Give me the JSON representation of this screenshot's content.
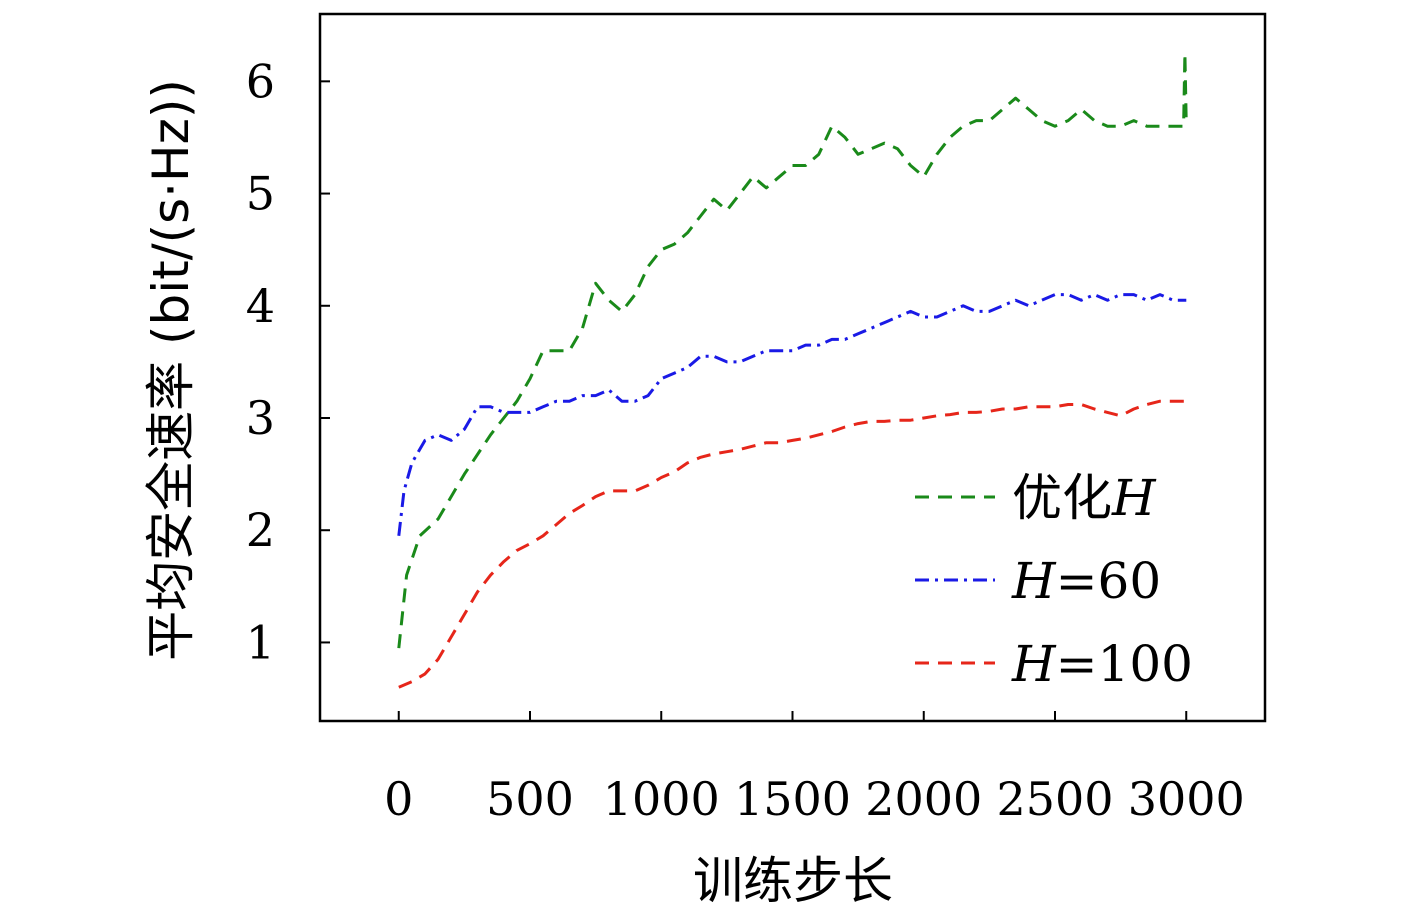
{
  "chart_data": {
    "type": "line",
    "title": "",
    "xlabel": "训练步长",
    "ylabel": "平均安全速率 (bit/(s·Hz))",
    "xlim": [
      -300,
      3300
    ],
    "ylim": [
      0.3,
      6.6
    ],
    "xticks": [
      0,
      500,
      1000,
      1500,
      2000,
      2500,
      3000
    ],
    "yticks": [
      1,
      2,
      3,
      4,
      5,
      6
    ],
    "grid": false,
    "legend_position": "right-middle",
    "series": [
      {
        "name": "优化H",
        "legend": {
          "prefix": "优化",
          "var": "H",
          "suffix": ""
        },
        "color": "#1a8a1a",
        "dash": "14 9",
        "x": [
          0,
          30,
          80,
          150,
          250,
          350,
          450,
          500,
          550,
          600,
          650,
          700,
          750,
          800,
          850,
          900,
          950,
          1000,
          1050,
          1100,
          1150,
          1200,
          1250,
          1300,
          1350,
          1400,
          1450,
          1500,
          1550,
          1600,
          1650,
          1700,
          1750,
          1800,
          1850,
          1900,
          1950,
          2000,
          2050,
          2100,
          2150,
          2200,
          2250,
          2300,
          2350,
          2400,
          2450,
          2500,
          2550,
          2600,
          2650,
          2700,
          2750,
          2800,
          2850,
          2900,
          2950,
          2990,
          2995,
          3000
        ],
        "values": [
          0.95,
          1.6,
          1.95,
          2.1,
          2.5,
          2.85,
          3.15,
          3.35,
          3.6,
          3.6,
          3.6,
          3.8,
          4.2,
          4.05,
          3.95,
          4.1,
          4.35,
          4.5,
          4.55,
          4.65,
          4.8,
          4.95,
          4.85,
          5.0,
          5.15,
          5.05,
          5.15,
          5.25,
          5.25,
          5.35,
          5.6,
          5.5,
          5.35,
          5.4,
          5.45,
          5.4,
          5.25,
          5.15,
          5.35,
          5.5,
          5.6,
          5.65,
          5.65,
          5.75,
          5.85,
          5.75,
          5.65,
          5.6,
          5.65,
          5.75,
          5.65,
          5.6,
          5.6,
          5.65,
          5.6,
          5.6,
          5.6,
          5.6,
          6.25,
          5.6
        ]
      },
      {
        "name": "H=60",
        "legend": {
          "prefix": "",
          "var": "H",
          "suffix": "=60"
        },
        "color": "#1a1ae6",
        "dash": "14 6 3 6",
        "x": [
          0,
          20,
          50,
          100,
          150,
          200,
          250,
          300,
          350,
          400,
          450,
          500,
          550,
          600,
          650,
          700,
          750,
          800,
          850,
          900,
          950,
          1000,
          1050,
          1100,
          1150,
          1200,
          1250,
          1300,
          1350,
          1400,
          1450,
          1500,
          1550,
          1600,
          1650,
          1700,
          1750,
          1800,
          1850,
          1900,
          1950,
          2000,
          2050,
          2100,
          2150,
          2200,
          2250,
          2300,
          2350,
          2400,
          2450,
          2500,
          2550,
          2600,
          2650,
          2700,
          2750,
          2800,
          2850,
          2900,
          2950,
          3000
        ],
        "values": [
          1.95,
          2.35,
          2.6,
          2.8,
          2.85,
          2.8,
          2.9,
          3.1,
          3.1,
          3.05,
          3.05,
          3.05,
          3.1,
          3.15,
          3.15,
          3.2,
          3.2,
          3.25,
          3.15,
          3.15,
          3.2,
          3.35,
          3.4,
          3.45,
          3.55,
          3.55,
          3.5,
          3.5,
          3.55,
          3.6,
          3.6,
          3.6,
          3.65,
          3.65,
          3.7,
          3.7,
          3.75,
          3.8,
          3.85,
          3.9,
          3.95,
          3.9,
          3.9,
          3.95,
          4.0,
          3.95,
          3.95,
          4.0,
          4.05,
          4.0,
          4.05,
          4.1,
          4.1,
          4.05,
          4.1,
          4.05,
          4.1,
          4.1,
          4.05,
          4.1,
          4.05,
          4.05
        ]
      },
      {
        "name": "H=100",
        "legend": {
          "prefix": "",
          "var": "H",
          "suffix": "=100"
        },
        "color": "#e6261a",
        "dash": "14 9",
        "x": [
          0,
          50,
          100,
          150,
          200,
          250,
          300,
          350,
          400,
          450,
          500,
          550,
          600,
          650,
          700,
          750,
          800,
          850,
          900,
          950,
          1000,
          1050,
          1100,
          1150,
          1200,
          1250,
          1300,
          1350,
          1400,
          1450,
          1500,
          1550,
          1600,
          1650,
          1700,
          1750,
          1800,
          1850,
          1900,
          1950,
          2000,
          2050,
          2100,
          2150,
          2200,
          2250,
          2300,
          2350,
          2400,
          2450,
          2500,
          2550,
          2600,
          2650,
          2700,
          2750,
          2800,
          2850,
          2900,
          2950,
          3000
        ],
        "values": [
          0.6,
          0.65,
          0.72,
          0.85,
          1.05,
          1.25,
          1.45,
          1.6,
          1.72,
          1.82,
          1.88,
          1.95,
          2.05,
          2.15,
          2.22,
          2.3,
          2.35,
          2.35,
          2.35,
          2.4,
          2.47,
          2.52,
          2.6,
          2.65,
          2.68,
          2.7,
          2.72,
          2.75,
          2.78,
          2.78,
          2.8,
          2.82,
          2.85,
          2.88,
          2.92,
          2.95,
          2.97,
          2.97,
          2.98,
          2.98,
          3.0,
          3.02,
          3.03,
          3.05,
          3.05,
          3.06,
          3.08,
          3.08,
          3.1,
          3.1,
          3.1,
          3.12,
          3.12,
          3.08,
          3.05,
          3.02,
          3.08,
          3.12,
          3.15,
          3.15,
          3.15
        ]
      }
    ]
  }
}
